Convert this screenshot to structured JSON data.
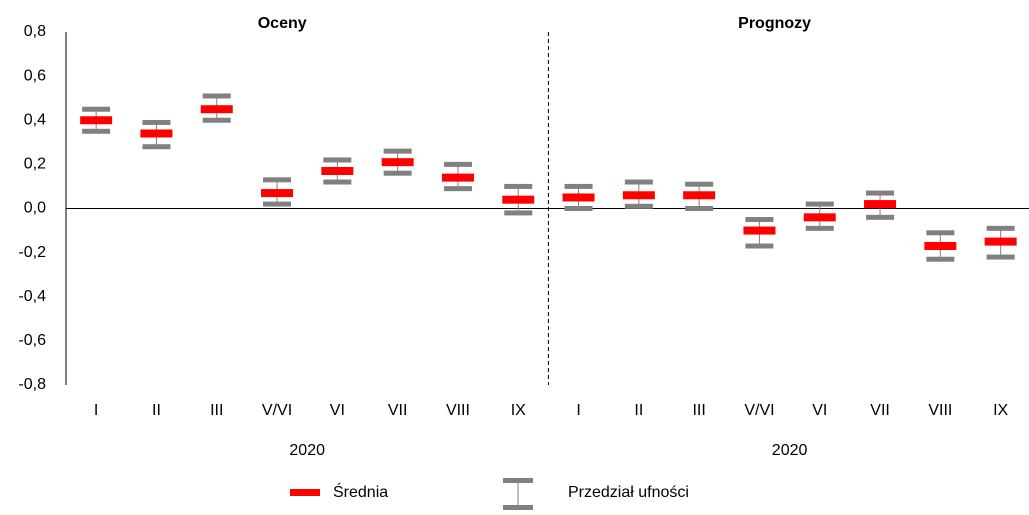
{
  "chart_data": {
    "type": "errorbar",
    "groups": [
      {
        "title": "Oceny",
        "year": "2020"
      },
      {
        "title": "Prognozy",
        "year": "2020"
      }
    ],
    "categories": [
      "I",
      "II",
      "III",
      "V/VI",
      "VI",
      "VII",
      "VIII",
      "IX",
      "I",
      "II",
      "III",
      "V/VI",
      "VI",
      "VII",
      "VIII",
      "IX"
    ],
    "series": [
      {
        "name": "Średnia",
        "color": "#ff0000",
        "values": [
          0.4,
          0.34,
          0.45,
          0.07,
          0.17,
          0.21,
          0.14,
          0.04,
          0.05,
          0.06,
          0.06,
          -0.1,
          -0.04,
          0.02,
          -0.17,
          -0.15
        ]
      },
      {
        "name": "Przedział ufności",
        "color": "#808080",
        "upper": [
          0.45,
          0.39,
          0.51,
          0.13,
          0.22,
          0.26,
          0.2,
          0.1,
          0.1,
          0.12,
          0.11,
          -0.05,
          0.02,
          0.07,
          -0.11,
          -0.09
        ],
        "lower": [
          0.35,
          0.28,
          0.4,
          0.02,
          0.12,
          0.16,
          0.09,
          -0.02,
          0.0,
          0.01,
          0.0,
          -0.17,
          -0.09,
          -0.04,
          -0.23,
          -0.22
        ]
      }
    ],
    "ylim": [
      -0.8,
      0.8
    ],
    "yticks": [
      {
        "value": -0.8,
        "label": "-0,8"
      },
      {
        "value": -0.6,
        "label": "-0,6"
      },
      {
        "value": -0.4,
        "label": "-0,4"
      },
      {
        "value": -0.2,
        "label": "-0,2"
      },
      {
        "value": 0,
        "label": "0,0"
      },
      {
        "value": 0.2,
        "label": "0,2"
      },
      {
        "value": 0.4,
        "label": "0,4"
      },
      {
        "value": 0.6,
        "label": "0,6"
      },
      {
        "value": 0.8,
        "label": "0,8"
      }
    ]
  }
}
